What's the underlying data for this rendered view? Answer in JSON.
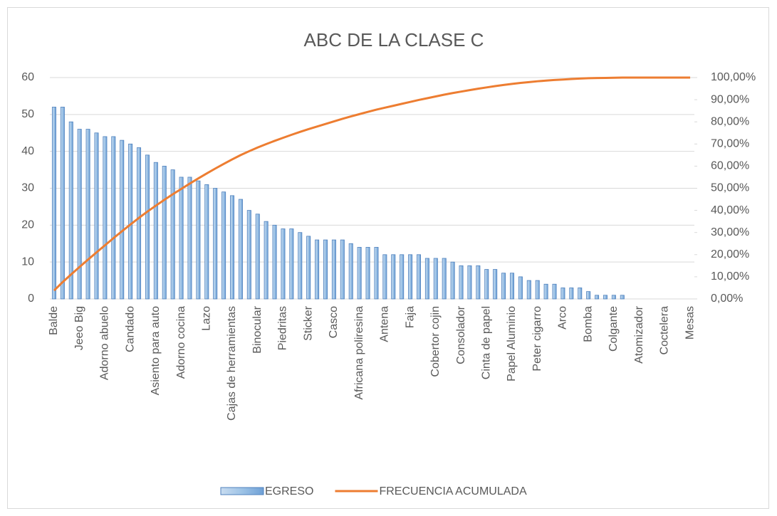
{
  "chart_data": {
    "type": "bar",
    "title": "ABC DE LA CLASE C",
    "categories": [
      "Balde",
      null,
      null,
      "Jeeo Big",
      null,
      null,
      "Adorno abuelo",
      null,
      null,
      "Candado",
      null,
      null,
      "Asiento para auto",
      null,
      null,
      "Adorno cocina",
      null,
      null,
      "Lazo",
      null,
      null,
      "Cajas de herramientas",
      null,
      null,
      "Binocular",
      null,
      null,
      "Piedritas",
      null,
      null,
      "Sticker",
      null,
      null,
      "Casco",
      null,
      null,
      "Africana poliresina",
      null,
      null,
      "Antena",
      null,
      null,
      "Faja",
      null,
      null,
      "Cobertor cojin",
      null,
      null,
      "Consolador",
      null,
      null,
      "Cinta de papel",
      null,
      null,
      "Papel Aluminio",
      null,
      null,
      "Peter cigarro",
      null,
      null,
      "Arco",
      null,
      null,
      "Bomba",
      null,
      null,
      "Colgante",
      null,
      null,
      "Atomizador",
      null,
      null,
      "Coctelera",
      null,
      null,
      "Mesas"
    ],
    "series": [
      {
        "name": "EGRESO",
        "type": "bar",
        "color": "#9dc3e6",
        "border": "#4f81bd",
        "values": [
          52,
          52,
          48,
          46,
          46,
          45,
          44,
          44,
          43,
          42,
          41,
          39,
          37,
          36,
          35,
          33,
          33,
          32,
          31,
          30,
          29,
          28,
          27,
          24,
          23,
          21,
          20,
          19,
          19,
          18,
          17,
          16,
          16,
          16,
          16,
          15,
          14,
          14,
          14,
          12,
          12,
          12,
          12,
          12,
          11,
          11,
          11,
          10,
          9,
          9,
          9,
          8,
          8,
          7,
          7,
          6,
          5,
          5,
          4,
          4,
          3,
          3,
          3,
          2,
          1,
          1,
          1,
          1,
          0,
          0,
          0,
          0,
          0,
          0,
          0,
          0
        ]
      },
      {
        "name": "FRECUENCIA ACUMULADA",
        "type": "line",
        "axis": "y2",
        "color": "#ed7d31",
        "values": [
          3.78,
          7.57,
          11.06,
          14.41,
          17.76,
          21.03,
          24.24,
          27.44,
          30.57,
          33.62,
          36.61,
          39.45,
          42.14,
          44.76,
          47.31,
          49.71,
          52.11,
          54.44,
          56.7,
          58.88,
          60.99,
          63.03,
          64.99,
          66.74,
          68.41,
          69.94,
          71.4,
          72.78,
          74.16,
          75.47,
          76.71,
          77.87,
          79.04,
          80.2,
          81.37,
          82.46,
          83.48,
          84.5,
          85.52,
          86.39,
          87.26,
          88.14,
          89.01,
          89.88,
          90.68,
          91.48,
          92.29,
          93.01,
          93.67,
          94.32,
          94.98,
          95.56,
          96.14,
          96.65,
          97.16,
          97.6,
          97.96,
          98.33,
          98.62,
          98.91,
          99.13,
          99.34,
          99.56,
          99.71,
          99.78,
          99.85,
          99.93,
          100,
          100,
          100,
          100,
          100,
          100,
          100,
          100,
          100
        ]
      }
    ],
    "ylim": [
      0,
      60
    ],
    "yticks": [
      0,
      10,
      20,
      30,
      40,
      50,
      60
    ],
    "y2lim": [
      0,
      100
    ],
    "y2ticks": [
      {
        "value": 0,
        "label": "0,00%"
      },
      {
        "value": 10,
        "label": "10,00%"
      },
      {
        "value": 20,
        "label": "20,00%"
      },
      {
        "value": 30,
        "label": "30,00%"
      },
      {
        "value": 40,
        "label": "40,00%"
      },
      {
        "value": 50,
        "label": "50,00%"
      },
      {
        "value": 60,
        "label": "60,00%"
      },
      {
        "value": 70,
        "label": "70,00%"
      },
      {
        "value": 80,
        "label": "80,00%"
      },
      {
        "value": 90,
        "label": "90,00%"
      },
      {
        "value": 100,
        "label": "100,00%"
      }
    ],
    "grid": true,
    "legend": "bottom"
  }
}
